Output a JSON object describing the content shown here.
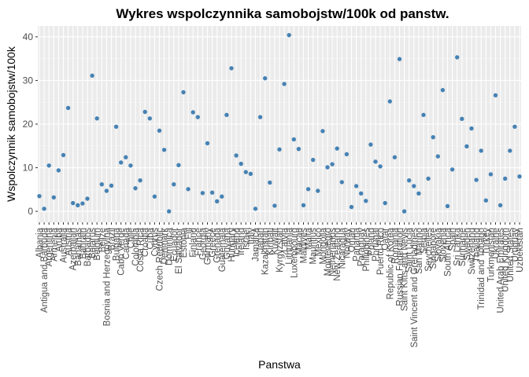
{
  "chart_data": {
    "type": "scatter",
    "title": "Wykres wspolczynnika samobojstw/100k od panstw.",
    "xlabel": "Panstwa",
    "ylabel": "Wspolczynnik samobojstw/100k",
    "ylim": [
      -2.5,
      42.5
    ],
    "yticks": [
      0,
      10,
      20,
      30,
      40
    ],
    "grid": true,
    "point_color": "#4682b4",
    "panel_color": "#ebebeb",
    "points": [
      {
        "x": "Albania",
        "y": 3.5
      },
      {
        "x": "Antigua and Barbuda",
        "y": 0.6
      },
      {
        "x": "Argentina",
        "y": 10.5
      },
      {
        "x": "Armenia",
        "y": 3.2
      },
      {
        "x": "Aruba",
        "y": 9.4
      },
      {
        "x": "Australia",
        "y": 12.9
      },
      {
        "x": "Austria",
        "y": 23.7
      },
      {
        "x": "Azerbaijan",
        "y": 1.9
      },
      {
        "x": "Bahamas",
        "y": 1.4
      },
      {
        "x": "Bahrain",
        "y": 1.8
      },
      {
        "x": "Barbados",
        "y": 2.9
      },
      {
        "x": "Belarus",
        "y": 31.1
      },
      {
        "x": "Belgium",
        "y": 21.3
      },
      {
        "x": "Belize",
        "y": 6.2
      },
      {
        "x": "Bosnia and Herzegovina",
        "y": 4.7
      },
      {
        "x": "Brazil",
        "y": 5.9
      },
      {
        "x": "Bulgaria",
        "y": 19.4
      },
      {
        "x": "Cabo Verde",
        "y": 11.2
      },
      {
        "x": "Canada",
        "y": 12.4
      },
      {
        "x": "Chile",
        "y": 10.5
      },
      {
        "x": "Colombia",
        "y": 5.3
      },
      {
        "x": "Costa Rica",
        "y": 7.1
      },
      {
        "x": "Croatia",
        "y": 22.8
      },
      {
        "x": "Cuba",
        "y": 21.3
      },
      {
        "x": "Cyprus",
        "y": 3.4
      },
      {
        "x": "Czech Republic",
        "y": 18.5
      },
      {
        "x": "Denmark",
        "y": 14.1
      },
      {
        "x": "Dominica",
        "y": 0.0
      },
      {
        "x": "Ecuador",
        "y": 6.2
      },
      {
        "x": "El Salvador",
        "y": 10.6
      },
      {
        "x": "Estonia",
        "y": 27.3
      },
      {
        "x": "Fiji",
        "y": 5.1
      },
      {
        "x": "Finland",
        "y": 22.7
      },
      {
        "x": "France",
        "y": 21.6
      },
      {
        "x": "Georgia",
        "y": 4.2
      },
      {
        "x": "Germany",
        "y": 15.6
      },
      {
        "x": "Greece",
        "y": 4.3
      },
      {
        "x": "Grenada",
        "y": 2.3
      },
      {
        "x": "Guatemala",
        "y": 3.4
      },
      {
        "x": "Guyana",
        "y": 22.1
      },
      {
        "x": "Hungary",
        "y": 32.8
      },
      {
        "x": "Iceland",
        "y": 12.8
      },
      {
        "x": "Ireland",
        "y": 10.9
      },
      {
        "x": "Israel",
        "y": 9.0
      },
      {
        "x": "Italy",
        "y": 8.6
      },
      {
        "x": "Jamaica",
        "y": 0.6
      },
      {
        "x": "Japan",
        "y": 21.6
      },
      {
        "x": "Kazakhstan",
        "y": 30.5
      },
      {
        "x": "Kiribati",
        "y": 6.6
      },
      {
        "x": "Kuwait",
        "y": 1.3
      },
      {
        "x": "Kyrgyzstan",
        "y": 14.2
      },
      {
        "x": "Latvia",
        "y": 29.2
      },
      {
        "x": "Lithuania",
        "y": 40.4
      },
      {
        "x": "Luxembourg",
        "y": 16.5
      },
      {
        "x": "Macau",
        "y": 14.3
      },
      {
        "x": "Maldives",
        "y": 1.4
      },
      {
        "x": "Malta",
        "y": 5.1
      },
      {
        "x": "Mauritius",
        "y": 11.8
      },
      {
        "x": "Mexico",
        "y": 4.7
      },
      {
        "x": "Mongolia",
        "y": 18.4
      },
      {
        "x": "Montenegro",
        "y": 10.1
      },
      {
        "x": "Netherlands",
        "y": 10.8
      },
      {
        "x": "New Zealand",
        "y": 14.4
      },
      {
        "x": "Nicaragua",
        "y": 6.7
      },
      {
        "x": "Norway",
        "y": 13.1
      },
      {
        "x": "Oman",
        "y": 1.0
      },
      {
        "x": "Panama",
        "y": 5.8
      },
      {
        "x": "Paraguay",
        "y": 4.1
      },
      {
        "x": "Philippines",
        "y": 2.4
      },
      {
        "x": "Poland",
        "y": 15.3
      },
      {
        "x": "Portugal",
        "y": 11.4
      },
      {
        "x": "Puerto Rico",
        "y": 10.3
      },
      {
        "x": "Qatar",
        "y": 1.9
      },
      {
        "x": "Republic of Korea",
        "y": 25.2
      },
      {
        "x": "Romania",
        "y": 12.4
      },
      {
        "x": "Russian Federation",
        "y": 34.9
      },
      {
        "x": "Saint Kitts and Nevis",
        "y": 0.0
      },
      {
        "x": "Saint Lucia",
        "y": 7.1
      },
      {
        "x": "Saint Vincent and Grenadines",
        "y": 5.8
      },
      {
        "x": "San Marino",
        "y": 4.1
      },
      {
        "x": "Serbia",
        "y": 22.1
      },
      {
        "x": "Seychelles",
        "y": 7.5
      },
      {
        "x": "Singapore",
        "y": 17.0
      },
      {
        "x": "Slovakia",
        "y": 12.6
      },
      {
        "x": "Slovenia",
        "y": 27.8
      },
      {
        "x": "South Africa",
        "y": 1.2
      },
      {
        "x": "Spain",
        "y": 9.6
      },
      {
        "x": "Sri Lanka",
        "y": 35.3
      },
      {
        "x": "Suriname",
        "y": 21.2
      },
      {
        "x": "Sweden",
        "y": 14.9
      },
      {
        "x": "Switzerland",
        "y": 19.0
      },
      {
        "x": "Thailand",
        "y": 7.2
      },
      {
        "x": "Trinidad and Tobago",
        "y": 13.9
      },
      {
        "x": "Turkey",
        "y": 2.5
      },
      {
        "x": "Turkmenistan",
        "y": 8.5
      },
      {
        "x": "Ukraine",
        "y": 26.6
      },
      {
        "x": "United Arab Emirates",
        "y": 1.4
      },
      {
        "x": "United Kingdom",
        "y": 7.5
      },
      {
        "x": "United States",
        "y": 13.9
      },
      {
        "x": "Uruguay",
        "y": 19.4
      },
      {
        "x": "Uzbekistan",
        "y": 8.0
      }
    ],
    "visible_x_labels": [
      "Albania",
      "Antigua and Barbuda",
      "Argentina",
      "Armenia",
      "Aruba",
      "Australia",
      "Austria",
      "Azerbaijan",
      "Bahamas",
      "Bahrain",
      "Barbados",
      "Belarus",
      "Belgium",
      "Belize",
      "Bosnia and Herzegovina",
      "Brazil",
      "Bulgaria",
      "Cabo Verde",
      "Canada",
      "Chile",
      "Colombia",
      "Costa Rica",
      "Croatia",
      "Cuba",
      "Cyprus",
      "Czech Republic",
      "Denmark",
      "Dominica",
      "Ecuador",
      "El Salvador",
      "Estonia",
      "Fiji",
      "Finland",
      "France",
      "Georgia",
      "Germany",
      "Greece",
      "Grenada",
      "Guatemala",
      "Guyana",
      "Hungary",
      "Iceland",
      "Ireland",
      "Israel",
      "Italy",
      "Jamaica",
      "Japan",
      "Kazakhstan",
      "Kiribati",
      "Kuwait",
      "Kyrgyzstan",
      "Latvia",
      "Lithuania",
      "Luxembourg",
      "Macau",
      "Maldives",
      "Malta",
      "Mauritius",
      "Mexico",
      "Mongolia",
      "Montenegro",
      "Netherlands",
      "New Zealand",
      "Nicaragua",
      "Norway",
      "Oman",
      "Panama",
      "Paraguay",
      "Philippines",
      "Poland",
      "Portugal",
      "Puerto Rico",
      "Qatar",
      "Republic of Korea",
      "Romania",
      "Russian Federation",
      "Saint Kitts and Nevis",
      "Saint Lucia",
      "Saint Vincent and Grenadines",
      "San Marino",
      "Serbia",
      "Seychelles",
      "Singapore",
      "Slovakia",
      "Slovenia",
      "South Africa",
      "Spain",
      "Sri Lanka",
      "Suriname",
      "Sweden",
      "Switzerland",
      "Thailand",
      "Trinidad and Tobago",
      "Turkey",
      "Turkmenistan",
      "Ukraine",
      "United Arab Emirates",
      "United Kingdom",
      "United States",
      "Uruguay",
      "Uzbekistan"
    ]
  }
}
